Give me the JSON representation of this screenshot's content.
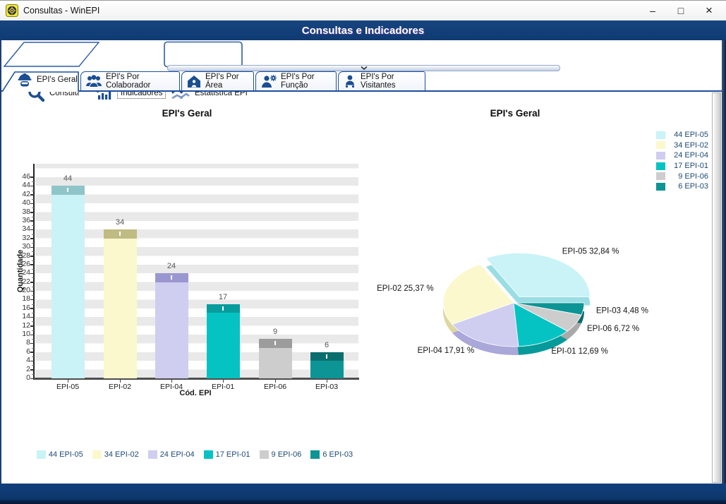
{
  "window": {
    "title": "Consultas - WinEPI",
    "controls": {
      "minimize": "–",
      "maximize": "□",
      "close": "×"
    }
  },
  "header": {
    "title": "Consultas e Indicadores"
  },
  "tabs": {
    "main": [
      {
        "label": "Consultas",
        "icon": "search-icon",
        "selected": false
      },
      {
        "label": "Indicadores",
        "icon": "bar-chart-icon",
        "selected": true
      },
      {
        "label": "Estatistíca EPI",
        "icon": "line-chart-icon",
        "selected": false
      }
    ],
    "sub": [
      {
        "label": "EPI's Geral",
        "icon": "helmet-worker-icon",
        "selected": true
      },
      {
        "label": "EPI's Por Colaborador",
        "icon": "people-group-icon",
        "selected": false
      },
      {
        "label": "EPI's Por Área",
        "icon": "house-person-icon",
        "selected": false
      },
      {
        "label": "EPI's Por Função",
        "icon": "person-gear-icon",
        "selected": false
      },
      {
        "label": "EPI's Por Visitantes",
        "icon": "visitor-person-icon",
        "selected": false
      }
    ]
  },
  "chart_data": [
    {
      "type": "bar",
      "title": "EPI's Geral",
      "xlabel": "Cód. EPI",
      "ylabel": "Quantidade",
      "ylim": [
        0,
        46
      ],
      "ytick_step": 2,
      "grid": "horizontal-bands",
      "categories": [
        "EPI-05",
        "EPI-02",
        "EPI-04",
        "EPI-01",
        "EPI-06",
        "EPI-03"
      ],
      "values": [
        44,
        34,
        24,
        17,
        9,
        6
      ],
      "colors": [
        "#c9f3f6",
        "#fbf8cd",
        "#cfcdf0",
        "#06c3c3",
        "#cdcdcd",
        "#0d9494"
      ],
      "cap_colors": [
        "#8fc5c9",
        "#bfbb83",
        "#9a97d0",
        "#089c9c",
        "#9c9c9c",
        "#0b6e6e"
      ],
      "legend": [
        "44 EPI-05",
        "34 EPI-02",
        "24 EPI-04",
        "17 EPI-01",
        "9 EPI-06",
        "6 EPI-03"
      ],
      "legend_position": "bottom"
    },
    {
      "type": "pie",
      "title": "EPI's Geral",
      "legend": [
        "44 EPI-05",
        "34 EPI-02",
        "24 EPI-04",
        "17 EPI-01",
        "9 EPI-06",
        "6 EPI-03"
      ],
      "legend_position": "top-right",
      "slices": [
        {
          "label": "EPI-05",
          "value": 44,
          "pct": "32,84 %",
          "pct_num": 32.84,
          "color": "#c9f3f6",
          "dark": "#9adde2",
          "exploded": true
        },
        {
          "label": "EPI-02",
          "value": 34,
          "pct": "25,37 %",
          "pct_num": 25.37,
          "color": "#fbf8cd",
          "dark": "#ddd8a0",
          "exploded": false
        },
        {
          "label": "EPI-04",
          "value": 24,
          "pct": "17,91 %",
          "pct_num": 17.91,
          "color": "#cfcdf0",
          "dark": "#aaa7d9",
          "exploded": false
        },
        {
          "label": "EPI-01",
          "value": 17,
          "pct": "12,69 %",
          "pct_num": 12.69,
          "color": "#06c3c3",
          "dark": "#079a9a",
          "exploded": false
        },
        {
          "label": "EPI-06",
          "value": 9,
          "pct": "6,72 %",
          "pct_num": 6.72,
          "color": "#cdcdcd",
          "dark": "#a9a9a9",
          "exploded": false
        },
        {
          "label": "EPI-03",
          "value": 6,
          "pct": "4,48 %",
          "pct_num": 4.48,
          "color": "#0d9494",
          "dark": "#0a6a6a",
          "exploded": false
        }
      ]
    }
  ],
  "colors": {
    "accent_navy": "#11407c",
    "tab_border": "#1d4f9c",
    "legend_text": "#1d4a75"
  }
}
